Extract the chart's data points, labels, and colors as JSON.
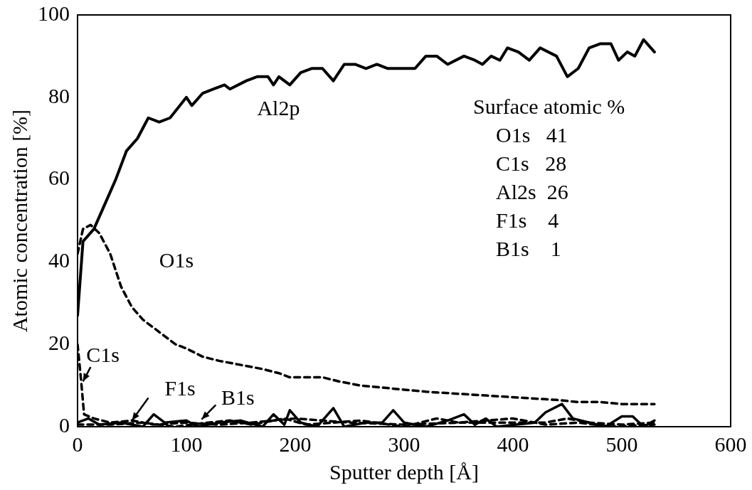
{
  "chart_data": {
    "type": "line",
    "xlabel": "Sputter depth [Å]",
    "ylabel": "Atomic concentration [%]",
    "xlim": [
      0,
      600
    ],
    "xticks": [
      0,
      100,
      200,
      300,
      400,
      500,
      600
    ],
    "ylim": [
      0,
      100
    ],
    "yticks": [
      0,
      20,
      40,
      60,
      80,
      100
    ],
    "grid": false,
    "legend": false,
    "marker": "none",
    "series": [
      {
        "name": "Al2p",
        "color": "#000000",
        "line_style": "solid",
        "x": [
          0,
          5,
          15,
          25,
          35,
          45,
          55,
          65,
          75,
          85,
          100,
          105,
          115,
          125,
          135,
          140,
          155,
          165,
          175,
          180,
          185,
          195,
          205,
          215,
          225,
          235,
          245,
          255,
          265,
          275,
          285,
          300,
          310,
          320,
          330,
          340,
          355,
          365,
          372,
          380,
          388,
          395,
          405,
          415,
          425,
          440,
          450,
          460,
          470,
          480,
          490,
          497,
          505,
          512,
          520,
          530
        ],
        "values": [
          27,
          45,
          48,
          54,
          60,
          67,
          70,
          75,
          74,
          75,
          80,
          78,
          81,
          82,
          83,
          82,
          84,
          85,
          85,
          83,
          85,
          83,
          86,
          87,
          87,
          84,
          88,
          88,
          87,
          88,
          87,
          87,
          87,
          90,
          90,
          88,
          90,
          89,
          88,
          90,
          89,
          92,
          91,
          89,
          92,
          90,
          85,
          87,
          92,
          93,
          93,
          89,
          91,
          90,
          94,
          91
        ]
      },
      {
        "name": "O1s",
        "color": "#000000",
        "line_style": "dashed",
        "x": [
          0,
          5,
          12,
          20,
          30,
          40,
          50,
          60,
          70,
          80,
          90,
          100,
          115,
          130,
          150,
          170,
          185,
          195,
          210,
          225,
          240,
          260,
          280,
          300,
          320,
          350,
          380,
          410,
          440,
          460,
          480,
          500,
          530
        ],
        "values": [
          42,
          48,
          49,
          47,
          42,
          34,
          29,
          26,
          24,
          22,
          20,
          19,
          17,
          16,
          15,
          14,
          13,
          12,
          12,
          12,
          11,
          10,
          9.5,
          9,
          8.5,
          8,
          7.5,
          7,
          6.5,
          6,
          6,
          5.5,
          5.5
        ]
      },
      {
        "name": "C1s",
        "color": "#000000",
        "line_style": "dashed",
        "x": [
          0,
          3,
          6,
          15,
          30,
          50,
          70,
          100,
          130,
          160,
          200,
          250,
          300,
          350,
          400,
          430,
          450,
          470,
          500,
          530
        ],
        "values": [
          20,
          12,
          3,
          2,
          1,
          1.5,
          0.5,
          1,
          0.5,
          1,
          2,
          1,
          0.5,
          1,
          1,
          1,
          2,
          1,
          0.5,
          1
        ]
      },
      {
        "name": "F1s",
        "color": "#000000",
        "line_style": "solid",
        "x": [
          0,
          10,
          20,
          40,
          60,
          70,
          80,
          100,
          110,
          130,
          150,
          170,
          180,
          190,
          195,
          205,
          220,
          235,
          245,
          265,
          280,
          290,
          300,
          320,
          340,
          355,
          365,
          375,
          385,
          420,
          430,
          445,
          455,
          470,
          485,
          500,
          510,
          520,
          530
        ],
        "values": [
          1,
          2,
          0.5,
          1,
          0,
          3,
          1,
          1.5,
          0,
          1,
          1.5,
          0,
          3,
          0.5,
          4,
          1,
          0,
          4.5,
          0,
          1,
          1,
          4,
          1,
          0,
          1.5,
          3,
          0.5,
          2,
          0,
          1,
          3.5,
          5.5,
          2,
          1,
          0,
          2.5,
          2.5,
          0,
          1.5
        ]
      },
      {
        "name": "B1s",
        "color": "#000000",
        "line_style": "dashed",
        "x": [
          0,
          30,
          60,
          90,
          120,
          140,
          160,
          190,
          210,
          260,
          300,
          330,
          350,
          400,
          430,
          460,
          490,
          530
        ],
        "values": [
          0.5,
          0.5,
          1,
          0,
          1,
          1.5,
          0.5,
          2,
          0.5,
          1.5,
          0,
          2,
          1,
          2,
          0.5,
          1,
          0,
          0.5
        ]
      }
    ],
    "annotations": [
      "Surface atomic %",
      "O1s   41",
      "C1s   28",
      "Al2s  26",
      "F1s    4",
      "B1s    1"
    ]
  }
}
